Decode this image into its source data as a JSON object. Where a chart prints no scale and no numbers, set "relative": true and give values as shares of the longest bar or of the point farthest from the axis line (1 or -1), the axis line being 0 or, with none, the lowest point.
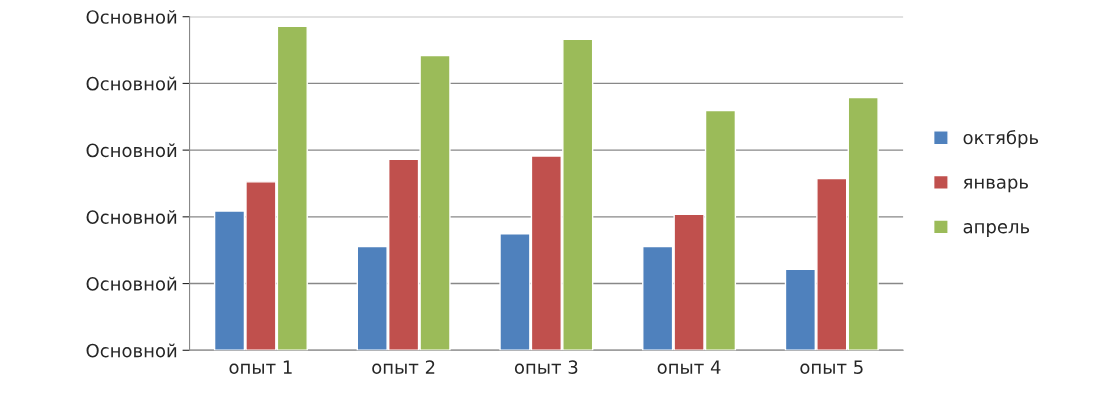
{
  "chart_data": {
    "type": "bar",
    "relative": true,
    "categories": [
      "опыт 1",
      "опыт 2",
      "опыт 3",
      "опыт 4",
      "опыт 5"
    ],
    "series": [
      {
        "name": "октябрь",
        "color": "#4f81bd",
        "values": [
          0.43,
          0.32,
          0.36,
          0.32,
          0.25
        ]
      },
      {
        "name": "январь",
        "color": "#c0504d",
        "values": [
          0.52,
          0.59,
          0.6,
          0.42,
          0.53
        ]
      },
      {
        "name": "апрель",
        "color": "#9bbb59",
        "values": [
          1,
          0.91,
          0.96,
          0.74,
          0.78
        ]
      }
    ],
    "annotations": [
      "Основной",
      "Основной",
      "Основной",
      "Основной",
      "Основной",
      "Основной"
    ],
    "grid": "y",
    "legend": "right"
  }
}
